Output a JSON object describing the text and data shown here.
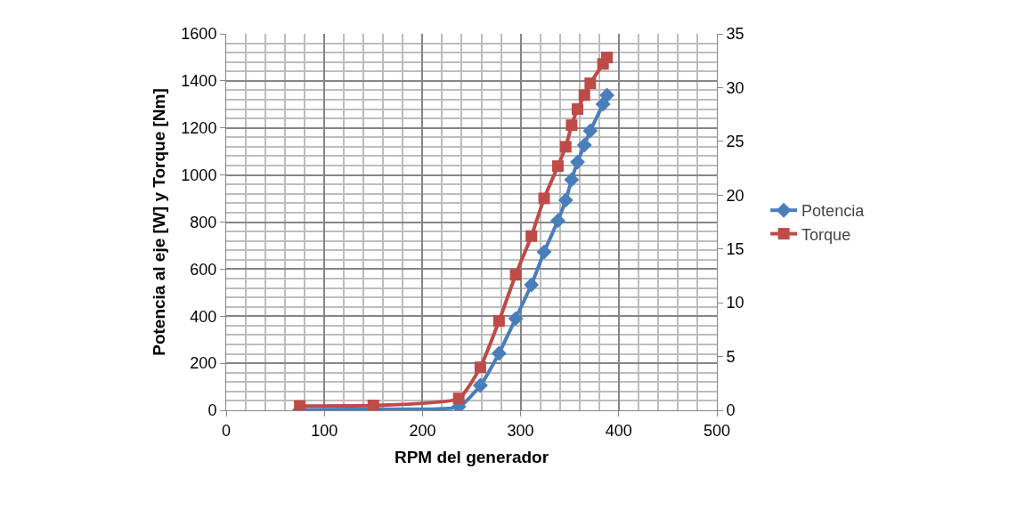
{
  "chart_data": {
    "type": "line",
    "xlabel": "RPM del generador",
    "ylabel": "Potencia al eje [W] y Torque [Nm]",
    "xlim": [
      0,
      500
    ],
    "xticks": [
      0,
      100,
      200,
      300,
      400,
      500
    ],
    "ylim": [
      0,
      1600
    ],
    "yticks": [
      0,
      200,
      400,
      600,
      800,
      1000,
      1200,
      1400,
      1600
    ],
    "y2lim": [
      0,
      35
    ],
    "y2ticks": [
      0,
      5,
      10,
      15,
      20,
      25,
      30,
      35
    ],
    "grid": true,
    "legend": "right",
    "series": [
      {
        "name": "Potencia",
        "color": "#4a7ebb",
        "marker": "diamond",
        "x": [
          75,
          150,
          237,
          259,
          278,
          295,
          311,
          324,
          338,
          346,
          352,
          358,
          365,
          371,
          384,
          388
        ],
        "values": [
          2,
          5,
          15,
          106,
          242,
          390,
          533,
          673,
          806,
          893,
          980,
          1055,
          1127,
          1188,
          1301,
          1339
        ]
      },
      {
        "name": "Torque",
        "color": "#be4b48",
        "marker": "square",
        "axis": "y2",
        "x": [
          75,
          150,
          237,
          259,
          278,
          295,
          311,
          324,
          338,
          346,
          352,
          358,
          365,
          371,
          384,
          388
        ],
        "values": [
          0.4,
          0.45,
          1.1,
          4.0,
          8.3,
          12.6,
          16.2,
          19.7,
          22.7,
          24.5,
          26.5,
          28.0,
          29.3,
          30.4,
          32.2,
          32.8
        ]
      }
    ]
  }
}
